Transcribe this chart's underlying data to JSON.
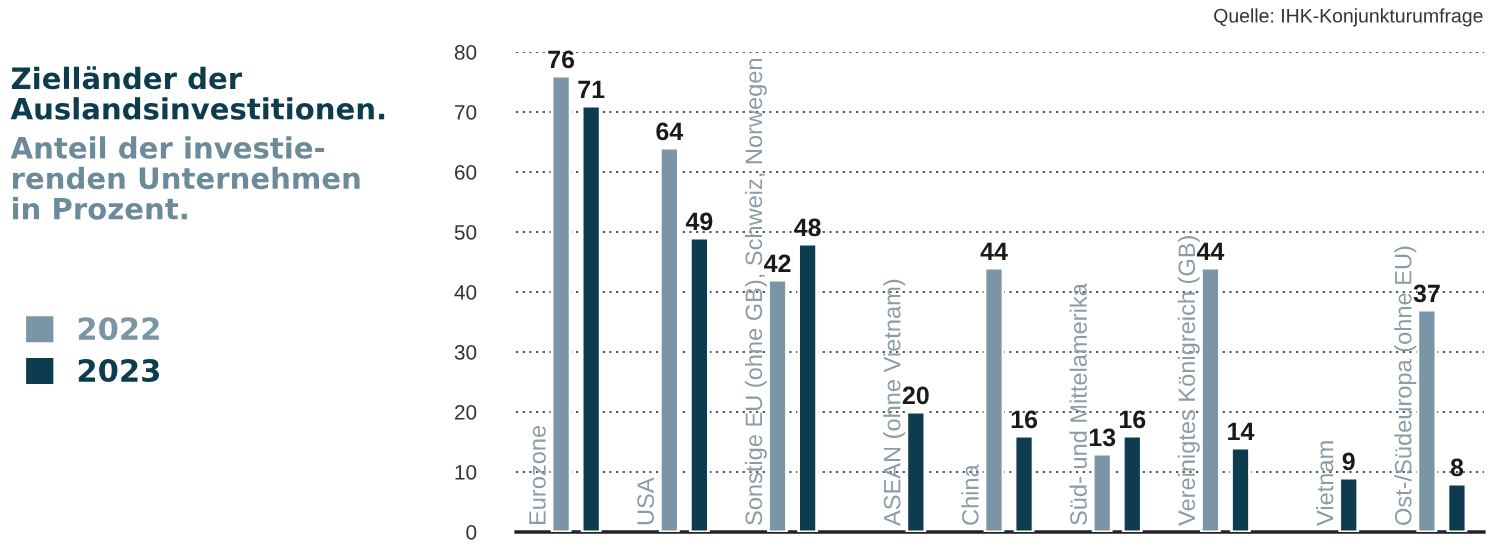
{
  "chart_data": {
    "type": "bar",
    "title": "Zielländer der\nAuslandsinvestitionen.",
    "subtitle": "Anteil der investie-\nrenden Unternehmen\nin Prozent.",
    "annotations": [
      "Quelle: IHK-Konjunkturumfrage"
    ],
    "categories": [
      "Eurozone",
      "USA",
      "Sonstige EU (ohne GB), Schweiz, Norwegen",
      "ASEAN (ohne Vietnam)",
      "China",
      "Süd- und Mittelamerika",
      "Vereinigtes Königreich (GB)",
      "Vietnam",
      "Ost-/Südeuropa (ohne EU)"
    ],
    "series": [
      {
        "name": "2022",
        "color": "#7a95a5",
        "values": [
          76,
          64,
          42,
          null,
          44,
          13,
          44,
          null,
          37
        ]
      },
      {
        "name": "2023",
        "color": "#0d3c4e",
        "values": [
          71,
          49,
          48,
          20,
          16,
          16,
          14,
          9,
          8
        ]
      }
    ],
    "ylim": [
      0,
      80
    ],
    "yticks": [
      0,
      10,
      20,
      30,
      40,
      50,
      60,
      70,
      80
    ],
    "grid": "y",
    "legend": "left",
    "data_labels": true
  }
}
